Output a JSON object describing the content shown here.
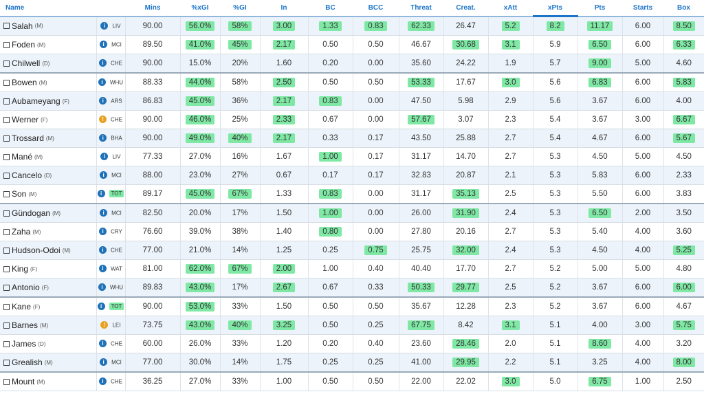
{
  "headers": [
    "Name",
    "",
    "Mins",
    "%xGI",
    "%GI",
    "In",
    "BC",
    "BCC",
    "Threat",
    "Creat.",
    "xAtt",
    "xPts",
    "Pts",
    "Starts",
    "Box"
  ],
  "sorted_column": "xPts",
  "colors": {
    "header_text": "#1c74c9",
    "highlight": "#7ee8a4",
    "info_icon": "#1f71b8",
    "warning_icon": "#e9a121",
    "alt_row": "#ecf3fa"
  },
  "rows": [
    {
      "name": "Salah",
      "pos": "(M)",
      "club": "LIV",
      "icon": "info",
      "mins": "90.00",
      "xgi": "56.0%",
      "gi": "58%",
      "in": "3.00",
      "bc": "1.33",
      "bcc": "0.83",
      "threat": "62.33",
      "creat": "26.47",
      "xatt": "5.2",
      "xpts": "8.2",
      "pts": "11.17",
      "starts": "6.00",
      "box": "8.50",
      "hl": [
        "xgi",
        "gi",
        "in",
        "bc",
        "bcc",
        "threat",
        "xatt",
        "xpts",
        "pts",
        "box"
      ]
    },
    {
      "name": "Foden",
      "pos": "(M)",
      "club": "MCI",
      "icon": "info",
      "mins": "89.50",
      "xgi": "41.0%",
      "gi": "45%",
      "in": "2.17",
      "bc": "0.50",
      "bcc": "0.50",
      "threat": "46.67",
      "creat": "30.68",
      "xatt": "3.1",
      "xpts": "5.9",
      "pts": "6.50",
      "starts": "6.00",
      "box": "6.33",
      "hl": [
        "xgi",
        "gi",
        "in",
        "creat",
        "xatt",
        "pts",
        "box"
      ]
    },
    {
      "name": "Chilwell",
      "pos": "(D)",
      "club": "CHE",
      "icon": "info",
      "mins": "90.00",
      "xgi": "15.0%",
      "gi": "20%",
      "in": "1.60",
      "bc": "0.20",
      "bcc": "0.00",
      "threat": "35.60",
      "creat": "24.22",
      "xatt": "1.9",
      "xpts": "5.7",
      "pts": "9.00",
      "starts": "5.00",
      "box": "4.60",
      "hl": [
        "pts"
      ]
    },
    {
      "name": "Bowen",
      "pos": "(M)",
      "club": "WHU",
      "icon": "info",
      "mins": "88.33",
      "xgi": "44.0%",
      "gi": "58%",
      "in": "2.50",
      "bc": "0.50",
      "bcc": "0.50",
      "threat": "53.33",
      "creat": "17.67",
      "xatt": "3.0",
      "xpts": "5.6",
      "pts": "6.83",
      "starts": "6.00",
      "box": "5.83",
      "hl": [
        "xgi",
        "in",
        "threat",
        "xatt",
        "pts",
        "box"
      ]
    },
    {
      "name": "Aubameyang",
      "pos": "(F)",
      "club": "ARS",
      "icon": "info",
      "mins": "86.83",
      "xgi": "45.0%",
      "gi": "36%",
      "in": "2.17",
      "bc": "0.83",
      "bcc": "0.00",
      "threat": "47.50",
      "creat": "5.98",
      "xatt": "2.9",
      "xpts": "5.6",
      "pts": "3.67",
      "starts": "6.00",
      "box": "4.00",
      "hl": [
        "xgi",
        "in",
        "bc"
      ]
    },
    {
      "name": "Werner",
      "pos": "(F)",
      "club": "CHE",
      "icon": "warn",
      "mins": "90.00",
      "xgi": "46.0%",
      "gi": "25%",
      "in": "2.33",
      "bc": "0.67",
      "bcc": "0.00",
      "threat": "57.67",
      "creat": "3.07",
      "xatt": "2.3",
      "xpts": "5.4",
      "pts": "3.67",
      "starts": "3.00",
      "box": "6.67",
      "hl": [
        "xgi",
        "in",
        "threat",
        "box"
      ]
    },
    {
      "name": "Trossard",
      "pos": "(M)",
      "club": "BHA",
      "icon": "info",
      "mins": "90.00",
      "xgi": "49.0%",
      "gi": "40%",
      "in": "2.17",
      "bc": "0.33",
      "bcc": "0.17",
      "threat": "43.50",
      "creat": "25.88",
      "xatt": "2.7",
      "xpts": "5.4",
      "pts": "4.67",
      "starts": "6.00",
      "box": "5.67",
      "hl": [
        "xgi",
        "gi",
        "in",
        "box"
      ]
    },
    {
      "name": "Mané",
      "pos": "(M)",
      "club": "LIV",
      "icon": "info",
      "mins": "77.33",
      "xgi": "27.0%",
      "gi": "16%",
      "in": "1.67",
      "bc": "1.00",
      "bcc": "0.17",
      "threat": "31.17",
      "creat": "14.70",
      "xatt": "2.7",
      "xpts": "5.3",
      "pts": "4.50",
      "starts": "5.00",
      "box": "4.50",
      "hl": [
        "bc"
      ]
    },
    {
      "name": "Cancelo",
      "pos": "(D)",
      "club": "MCI",
      "icon": "info",
      "mins": "88.00",
      "xgi": "23.0%",
      "gi": "27%",
      "in": "0.67",
      "bc": "0.17",
      "bcc": "0.17",
      "threat": "32.83",
      "creat": "20.87",
      "xatt": "2.1",
      "xpts": "5.3",
      "pts": "5.83",
      "starts": "6.00",
      "box": "2.33",
      "hl": []
    },
    {
      "name": "Son",
      "pos": "(M)",
      "club": "TOT",
      "icon": "info",
      "mins": "89.17",
      "xgi": "45.0%",
      "gi": "67%",
      "in": "1.33",
      "bc": "0.83",
      "bcc": "0.00",
      "threat": "31.17",
      "creat": "35.13",
      "xatt": "2.5",
      "xpts": "5.3",
      "pts": "5.50",
      "starts": "6.00",
      "box": "3.83",
      "hl": [
        "club",
        "xgi",
        "gi",
        "bc",
        "creat"
      ]
    },
    {
      "name": "Gündogan",
      "pos": "(M)",
      "club": "MCI",
      "icon": "info",
      "mins": "82.50",
      "xgi": "20.0%",
      "gi": "17%",
      "in": "1.50",
      "bc": "1.00",
      "bcc": "0.00",
      "threat": "26.00",
      "creat": "31.90",
      "xatt": "2.4",
      "xpts": "5.3",
      "pts": "6.50",
      "starts": "2.00",
      "box": "3.50",
      "hl": [
        "bc",
        "creat",
        "pts"
      ]
    },
    {
      "name": "Zaha",
      "pos": "(M)",
      "club": "CRY",
      "icon": "info",
      "mins": "76.60",
      "xgi": "39.0%",
      "gi": "38%",
      "in": "1.40",
      "bc": "0.80",
      "bcc": "0.00",
      "threat": "27.80",
      "creat": "20.16",
      "xatt": "2.7",
      "xpts": "5.3",
      "pts": "5.40",
      "starts": "4.00",
      "box": "3.60",
      "hl": [
        "bc"
      ]
    },
    {
      "name": "Hudson-Odoi",
      "pos": "(M)",
      "club": "CHE",
      "icon": "info",
      "mins": "77.00",
      "xgi": "21.0%",
      "gi": "14%",
      "in": "1.25",
      "bc": "0.25",
      "bcc": "0.75",
      "threat": "25.75",
      "creat": "32.00",
      "xatt": "2.4",
      "xpts": "5.3",
      "pts": "4.50",
      "starts": "4.00",
      "box": "5.25",
      "hl": [
        "bcc",
        "creat",
        "box"
      ]
    },
    {
      "name": "King",
      "pos": "(F)",
      "club": "WAT",
      "icon": "info",
      "mins": "81.00",
      "xgi": "62.0%",
      "gi": "67%",
      "in": "2.00",
      "bc": "1.00",
      "bcc": "0.40",
      "threat": "40.40",
      "creat": "17.70",
      "xatt": "2.7",
      "xpts": "5.2",
      "pts": "5.00",
      "starts": "5.00",
      "box": "4.80",
      "hl": [
        "xgi",
        "gi",
        "in"
      ]
    },
    {
      "name": "Antonio",
      "pos": "(F)",
      "club": "WHU",
      "icon": "info",
      "mins": "89.83",
      "xgi": "43.0%",
      "gi": "17%",
      "in": "2.67",
      "bc": "0.67",
      "bcc": "0.33",
      "threat": "50.33",
      "creat": "29.77",
      "xatt": "2.5",
      "xpts": "5.2",
      "pts": "3.67",
      "starts": "6.00",
      "box": "6.00",
      "hl": [
        "xgi",
        "in",
        "threat",
        "creat",
        "box"
      ]
    },
    {
      "name": "Kane",
      "pos": "(F)",
      "club": "TOT",
      "icon": "info",
      "mins": "90.00",
      "xgi": "53.0%",
      "gi": "33%",
      "in": "1.50",
      "bc": "0.50",
      "bcc": "0.50",
      "threat": "35.67",
      "creat": "12.28",
      "xatt": "2.3",
      "xpts": "5.2",
      "pts": "3.67",
      "starts": "6.00",
      "box": "4.67",
      "hl": [
        "club",
        "xgi"
      ]
    },
    {
      "name": "Barnes",
      "pos": "(M)",
      "club": "LEI",
      "icon": "warn",
      "mins": "73.75",
      "xgi": "43.0%",
      "gi": "40%",
      "in": "3.25",
      "bc": "0.50",
      "bcc": "0.25",
      "threat": "67.75",
      "creat": "8.42",
      "xatt": "3.1",
      "xpts": "5.1",
      "pts": "4.00",
      "starts": "3.00",
      "box": "5.75",
      "hl": [
        "xgi",
        "gi",
        "in",
        "threat",
        "xatt",
        "box"
      ]
    },
    {
      "name": "James",
      "pos": "(D)",
      "club": "CHE",
      "icon": "info",
      "mins": "60.00",
      "xgi": "26.0%",
      "gi": "33%",
      "in": "1.20",
      "bc": "0.20",
      "bcc": "0.40",
      "threat": "23.60",
      "creat": "28.46",
      "xatt": "2.0",
      "xpts": "5.1",
      "pts": "8.60",
      "starts": "4.00",
      "box": "3.20",
      "hl": [
        "creat",
        "pts"
      ]
    },
    {
      "name": "Grealish",
      "pos": "(M)",
      "club": "MCI",
      "icon": "info",
      "mins": "77.00",
      "xgi": "30.0%",
      "gi": "14%",
      "in": "1.75",
      "bc": "0.25",
      "bcc": "0.25",
      "threat": "41.00",
      "creat": "29.95",
      "xatt": "2.2",
      "xpts": "5.1",
      "pts": "3.25",
      "starts": "4.00",
      "box": "8.00",
      "hl": [
        "creat",
        "box"
      ]
    },
    {
      "name": "Mount",
      "pos": "(M)",
      "club": "CHE",
      "icon": "info",
      "mins": "36.25",
      "xgi": "27.0%",
      "gi": "33%",
      "in": "1.00",
      "bc": "0.50",
      "bcc": "0.50",
      "threat": "22.00",
      "creat": "22.02",
      "xatt": "3.0",
      "xpts": "5.0",
      "pts": "6.75",
      "starts": "1.00",
      "box": "2.50",
      "hl": [
        "xatt",
        "pts"
      ]
    }
  ]
}
